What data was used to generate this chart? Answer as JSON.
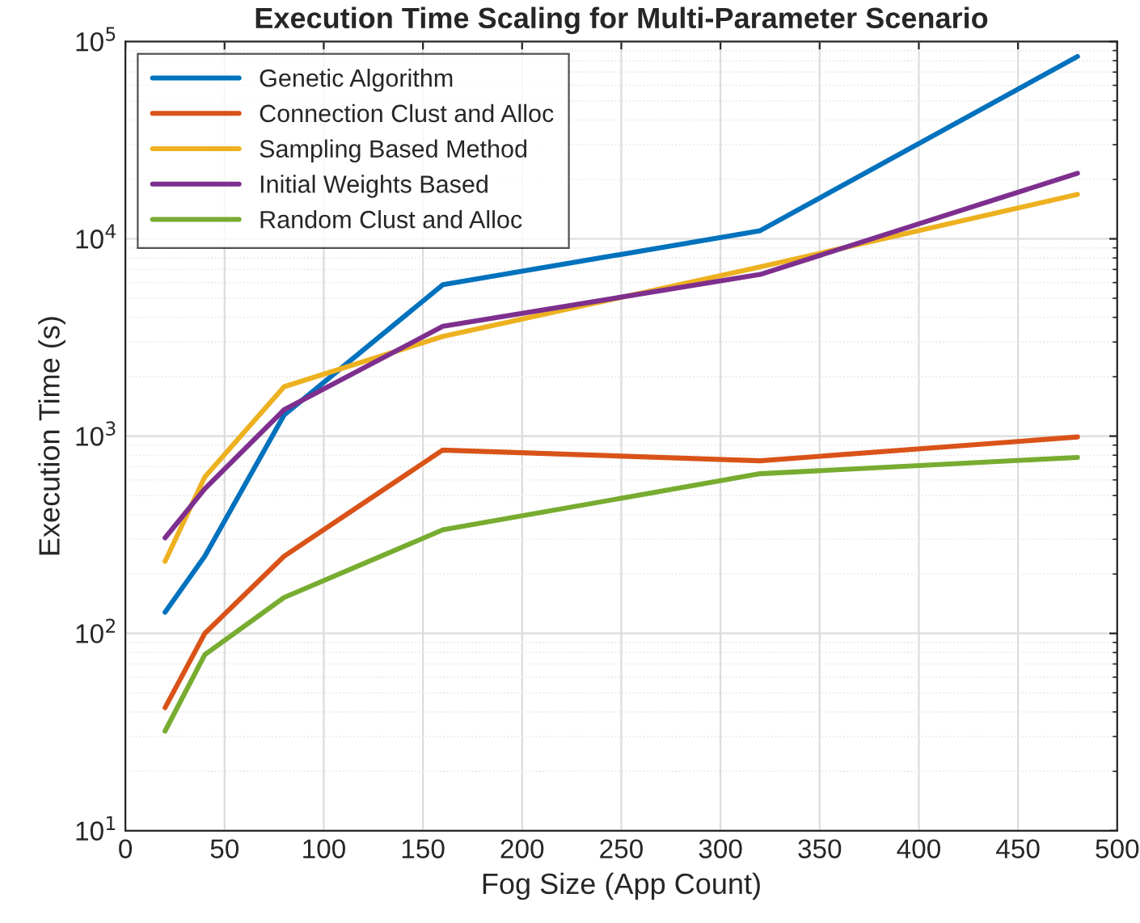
{
  "chart_data": {
    "type": "line",
    "title": "Execution Time Scaling for Multi-Parameter Scenario",
    "xlabel": "Fog Size (App Count)",
    "ylabel": "Execution Time (s)",
    "x": [
      20,
      40,
      80,
      160,
      320,
      480
    ],
    "series": [
      {
        "name": "Genetic Algorithm",
        "color": "#0072bd",
        "values": [
          128,
          246,
          1280,
          5850,
          11000,
          84000
        ]
      },
      {
        "name": "Connection Clust and Alloc",
        "color": "#d95319",
        "values": [
          42,
          100,
          246,
          850,
          750,
          990
        ]
      },
      {
        "name": "Sampling Based Method",
        "color": "#edb120",
        "values": [
          232,
          620,
          1780,
          3200,
          7200,
          16800
        ]
      },
      {
        "name": "Initial Weights Based",
        "color": "#7e2f8e",
        "values": [
          305,
          540,
          1360,
          3600,
          6600,
          21500
        ]
      },
      {
        "name": "Random Clust and Alloc",
        "color": "#77ac30",
        "values": [
          32,
          78,
          152,
          335,
          645,
          780
        ]
      }
    ],
    "log": "y",
    "xlim": [
      0,
      500
    ],
    "xticks": [
      0,
      50,
      100,
      150,
      200,
      250,
      300,
      350,
      400,
      450,
      500
    ],
    "ylim": [
      10,
      100000
    ],
    "yticks": [
      {
        "value": 10,
        "label": "10$^{1}$"
      },
      {
        "value": 100,
        "label": "10$^{2}$"
      },
      {
        "value": 1000,
        "label": "10$^{3}$"
      },
      {
        "value": 10000,
        "label": "10$^{4}$"
      },
      {
        "value": 100000,
        "label": "10$^{5}$"
      }
    ],
    "grid": true,
    "legend": "top left",
    "line_style": "solid",
    "marker": "none"
  }
}
